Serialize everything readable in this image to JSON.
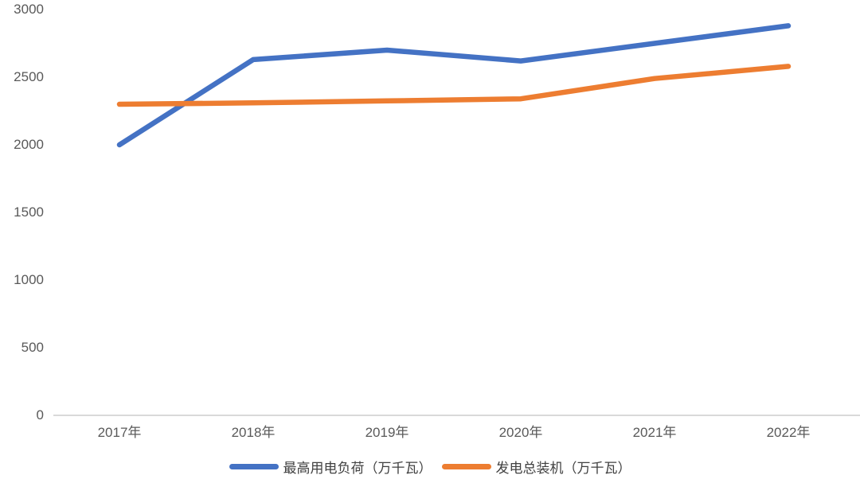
{
  "chart_data": {
    "type": "line",
    "title": "",
    "xlabel": "",
    "ylabel": "",
    "categories": [
      "2017年",
      "2018年",
      "2019年",
      "2020年",
      "2021年",
      "2022年"
    ],
    "series": [
      {
        "name": "最高用电负荷（万千瓦）",
        "color": "#4472C4",
        "values": [
          2000,
          2630,
          2700,
          2620,
          2750,
          2880
        ]
      },
      {
        "name": "发电总装机（万千瓦）",
        "color": "#ED7D31",
        "values": [
          2300,
          2310,
          2325,
          2340,
          2490,
          2580
        ]
      }
    ],
    "ylim": [
      0,
      3000
    ],
    "yticks": [
      0,
      500,
      1000,
      1500,
      2000,
      2500,
      3000
    ],
    "grid": false,
    "legend_position": "bottom",
    "background_color": "#FFFFFF",
    "axis_line_color": "#D9D9D9",
    "tick_label_color": "#595959",
    "legend_text_color": "#404040"
  }
}
